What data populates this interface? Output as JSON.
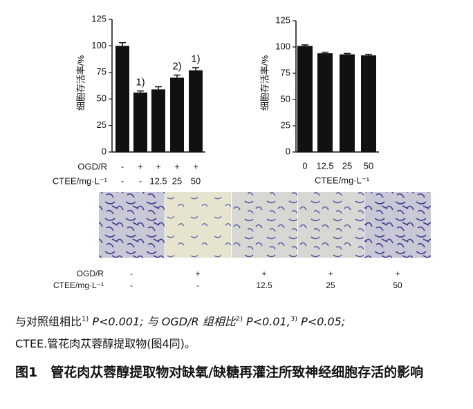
{
  "chart_data": [
    {
      "type": "bar",
      "y_label": "细胞存活率/%",
      "color": "#111111",
      "rows": [
        {
          "label": "OGD/R",
          "cells": [
            "-",
            "+",
            "+",
            "+",
            "+"
          ]
        },
        {
          "label": "CTEE/mg·L⁻¹",
          "cells": [
            "-",
            "-",
            "12.5",
            "25",
            "50"
          ]
        }
      ],
      "values": [
        100,
        56,
        59,
        70,
        77
      ],
      "errors": [
        3,
        1.5,
        2.5,
        2.5,
        2.5
      ],
      "annotations": [
        null,
        "1)",
        null,
        "2)",
        "1)"
      ],
      "ylim": [
        0,
        125
      ],
      "yticks": [
        0,
        25,
        50,
        75,
        100,
        125
      ]
    },
    {
      "type": "bar",
      "y_label": "细胞存活率/%",
      "x_label": "CTEE/mg·L⁻¹",
      "color": "#111111",
      "categories": [
        "0",
        "12.5",
        "25",
        "50"
      ],
      "values": [
        101,
        94,
        93,
        92
      ],
      "errors": [
        1,
        1,
        0.8,
        1
      ],
      "ylim": [
        0,
        125
      ],
      "yticks": [
        0,
        25,
        50,
        75,
        100,
        125
      ]
    }
  ],
  "image_panel": {
    "rows": [
      {
        "label": "OGD/R",
        "cells": [
          "-",
          "+",
          "+",
          "+",
          "+"
        ]
      },
      {
        "label": "CTEE/mg·L⁻¹",
        "cells": [
          "-",
          "-",
          "12.5",
          "25",
          "50"
        ]
      }
    ]
  },
  "caption": {
    "notes": [
      "与对照组相比",
      "1)",
      " P<0.001; 与 OGD/R 组相比",
      "2)",
      " P<0.01,",
      "3)",
      " P<0.05;"
    ],
    "abbrev": "CTEE.管花肉苁蓉醇提取物(图4同)。",
    "figure_title_1": "图1　管花肉苁蓉醇提取物对缺氧/缺糖再灌注所致神经细胞存活的影响",
    "figure_title_2": ""
  }
}
